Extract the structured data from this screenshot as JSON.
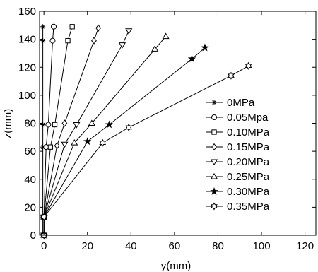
{
  "chart_data": {
    "type": "line",
    "title": "",
    "xlabel": "y(mm)",
    "ylabel": "z(mm)",
    "xlim": [
      -2,
      125
    ],
    "ylim": [
      0,
      160
    ],
    "xticks": [
      0,
      20,
      40,
      60,
      80,
      100,
      120
    ],
    "yticks": [
      0,
      20,
      40,
      60,
      80,
      100,
      120,
      140,
      160
    ],
    "grid": false,
    "legend_position": "right",
    "series": [
      {
        "name": "0MPa",
        "marker": "asterisk",
        "points": [
          [
            -0.5,
            0
          ],
          [
            -0.5,
            13
          ],
          [
            -0.5,
            63
          ],
          [
            -0.5,
            79
          ],
          [
            -0.5,
            139
          ],
          [
            -0.5,
            149
          ]
        ]
      },
      {
        "name": "0.05Mpa",
        "marker": "circle",
        "points": [
          [
            0,
            0
          ],
          [
            0,
            13
          ],
          [
            1,
            63
          ],
          [
            2,
            79
          ],
          [
            4,
            139
          ],
          [
            4.5,
            149
          ]
        ]
      },
      {
        "name": "0.10MPa",
        "marker": "square",
        "points": [
          [
            0,
            0
          ],
          [
            0,
            13
          ],
          [
            3,
            63
          ],
          [
            5,
            79
          ],
          [
            11,
            139
          ],
          [
            13,
            149
          ]
        ]
      },
      {
        "name": "0.15MPa",
        "marker": "diamond",
        "points": [
          [
            0,
            0
          ],
          [
            0,
            13
          ],
          [
            6,
            64
          ],
          [
            9.5,
            80
          ],
          [
            23,
            139
          ],
          [
            25,
            148
          ]
        ]
      },
      {
        "name": "0.20MPa",
        "marker": "triangle-down",
        "points": [
          [
            0,
            0
          ],
          [
            0,
            13
          ],
          [
            9.5,
            65
          ],
          [
            15,
            79
          ],
          [
            36,
            136
          ],
          [
            39,
            146
          ]
        ]
      },
      {
        "name": "0.25MPa",
        "marker": "triangle-up",
        "points": [
          [
            0,
            0
          ],
          [
            0,
            13
          ],
          [
            14,
            66
          ],
          [
            22,
            80
          ],
          [
            51,
            133
          ],
          [
            56,
            142
          ]
        ]
      },
      {
        "name": "0.30MPa",
        "marker": "star",
        "points": [
          [
            0,
            0
          ],
          [
            0,
            13
          ],
          [
            20,
            67
          ],
          [
            30,
            79
          ],
          [
            68,
            126
          ],
          [
            74,
            134
          ]
        ]
      },
      {
        "name": "0.35MPa",
        "marker": "hexagram",
        "points": [
          [
            0,
            0
          ],
          [
            0,
            13
          ],
          [
            27,
            66
          ],
          [
            39,
            77
          ],
          [
            86,
            114
          ],
          [
            94,
            121
          ]
        ]
      }
    ]
  }
}
